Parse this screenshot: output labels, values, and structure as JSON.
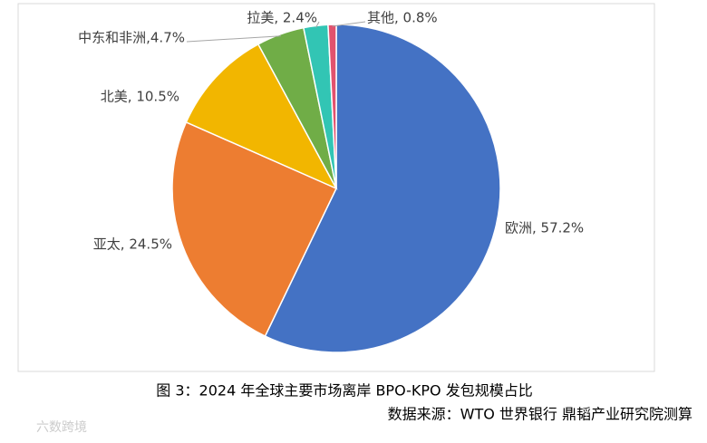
{
  "chart_data": {
    "type": "pie",
    "values": [
      57.2,
      24.5,
      10.5,
      4.7,
      2.4,
      0.8
    ],
    "value_labels": [
      "欧洲, 57.2%",
      "亚太, 24.5%",
      "北美, 10.5%",
      "中东和非洲,4.7%",
      "拉美, 2.4%",
      "其他, 0.8%"
    ],
    "colors": [
      "#4472c4",
      "#ed7d31",
      "#f2b600",
      "#70ad47",
      "#32c5b4",
      "#e2526e"
    ],
    "caption": "图 3：2024 年全球主要市场离岸 BPO-KPO 发包规模占比",
    "source": "数据来源：WTO 世界银行 鼎韬产业研究院测算",
    "watermark": "六数跨境"
  }
}
